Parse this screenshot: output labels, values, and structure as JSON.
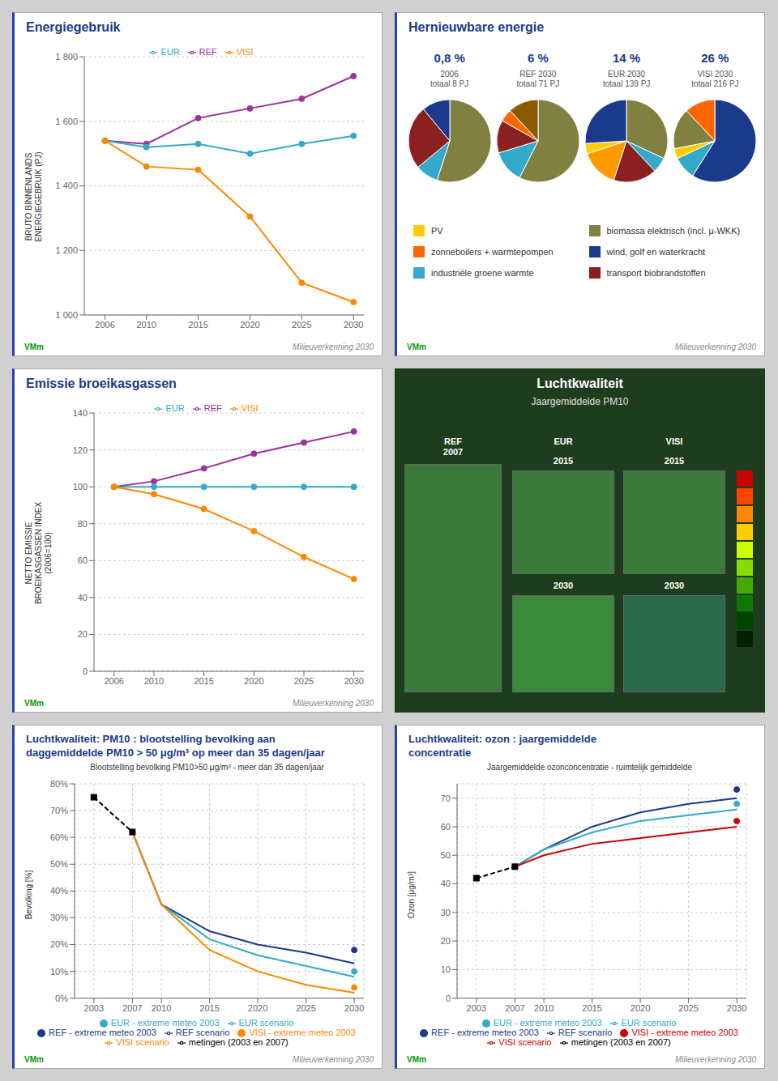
{
  "chart_data": [
    {
      "type": "line",
      "title": "Energiegebruik",
      "ylabel": "BRUTO BINNENLANDS\nENERGIEGEBRUIK (PJ)",
      "x": [
        2006,
        2010,
        2015,
        2020,
        2025,
        2030
      ],
      "xlim": [
        2004,
        2031
      ],
      "xticks": [
        2006,
        2010,
        2015,
        2020,
        2025,
        2030
      ],
      "ylim": [
        1000,
        1800
      ],
      "yticks": [
        {
          "value": 1000,
          "label": "1 000"
        },
        {
          "value": 1200,
          "label": "1 200"
        },
        {
          "value": 1400,
          "label": "1 400"
        },
        {
          "value": 1600,
          "label": "1 600"
        },
        {
          "value": 1800,
          "label": "1 800"
        }
      ],
      "grid": "y",
      "legend": "top",
      "series": [
        {
          "name": "REF",
          "color": "#993399",
          "marker": "circle",
          "values": [
            1540,
            1530,
            1610,
            1640,
            1670,
            1740
          ]
        },
        {
          "name": "EUR",
          "color": "#33aacc",
          "marker": "circle",
          "values": [
            1540,
            1520,
            1530,
            1500,
            1530,
            1555
          ]
        },
        {
          "name": "VISI",
          "color": "#ff8800",
          "marker": "circle",
          "values": [
            1540,
            1460,
            1450,
            1305,
            1100,
            1040
          ]
        }
      ],
      "annotations": [
        "VMm",
        "Milieuverkenning 2030"
      ]
    },
    {
      "type": "pie",
      "title": "Hernieuwbare energie",
      "series": [
        {
          "name": "0,8 %",
          "subtitle": "2006\ntotaal 8 PJ",
          "values": [
            55,
            9,
            25,
            11
          ],
          "colors": [
            "#808040",
            "#33aacc",
            "#8b2020",
            "#1a3a8c"
          ]
        },
        {
          "name": "6 %",
          "subtitle": "REF 2030\ntotaal 71 PJ",
          "values": [
            58,
            13,
            13,
            5,
            12
          ],
          "colors": [
            "#808040",
            "#33aacc",
            "#8b2020",
            "#ff6600",
            "#8b5a00"
          ]
        },
        {
          "name": "14 %",
          "subtitle": "EUR 2030\ntotaal 139 PJ",
          "values": [
            32,
            6,
            17,
            15,
            4,
            26
          ],
          "colors": [
            "#808040",
            "#33aacc",
            "#8b2020",
            "#ff9900",
            "#ffcc00",
            "#1a3a8c"
          ]
        },
        {
          "name": "26 %",
          "subtitle": "VISI 2030\ntotaal 216 PJ",
          "values": [
            59,
            9,
            4,
            16,
            12
          ],
          "colors": [
            "#1a3a8c",
            "#33aacc",
            "#ffcc00",
            "#808040",
            "#ff6600"
          ]
        }
      ],
      "legend": "bottom",
      "legend_items": [
        {
          "name": "PV",
          "color": "#ffcc00"
        },
        {
          "name": "biomassa elektrisch (incl. μ-WKK)",
          "color": "#808040"
        },
        {
          "name": "zonneboilers + warmtepompen",
          "color": "#ff6600"
        },
        {
          "name": "wind, golf en waterkracht",
          "color": "#1a3a8c"
        },
        {
          "name": "industriële groene warmte",
          "color": "#33aacc"
        },
        {
          "name": "transport biobrandstoffen",
          "color": "#8b2020"
        }
      ],
      "annotations": [
        "VMm",
        "Milieuverkenning 2030"
      ]
    },
    {
      "type": "line",
      "title": "Emissie broeikasgassen",
      "ylabel": "NETTO EMISSIE\nBROEIKASGASSEN INDEX\n(2006=100)",
      "x": [
        2006,
        2010,
        2015,
        2020,
        2025,
        2030
      ],
      "xlim": [
        2004,
        2031
      ],
      "xticks": [
        2006,
        2010,
        2015,
        2020,
        2025,
        2030
      ],
      "ylim": [
        0,
        140
      ],
      "yticks": [
        0,
        20,
        40,
        60,
        80,
        100,
        120,
        140
      ],
      "grid": "y",
      "legend": "top",
      "series": [
        {
          "name": "REF",
          "color": "#993399",
          "marker": "circle",
          "values": [
            100,
            103,
            110,
            118,
            124,
            130
          ]
        },
        {
          "name": "EUR",
          "color": "#33aacc",
          "marker": "circle",
          "values": [
            100,
            100,
            100,
            100,
            100,
            100
          ]
        },
        {
          "name": "VISI",
          "color": "#ff8800",
          "marker": "circle",
          "values": [
            100,
            96,
            88,
            76,
            62,
            50
          ]
        }
      ],
      "annotations": [
        "VMm",
        "Milieuverkenning 2030"
      ]
    },
    {
      "type": "map",
      "title": "Luchtkwaliteit",
      "subtitle": "Jaargemiddelde PM10",
      "annotations": [
        "REF\n2007",
        "EUR",
        "VISI",
        "2015",
        "2015",
        "2030",
        "2030"
      ]
    },
    {
      "type": "line",
      "title": "Luchtkwaliteit: PM10 : blootstelling bevolking aan\ndaggemiddelde PM10 > 50 μg/m³ op meer dan 35 dagen/jaar",
      "subtitle": "Blootstelling bevolking PM10>50 μg/m³ - meer dan 35 dagen/jaar",
      "ylabel": "Bevolking [%]",
      "xlim": [
        2001,
        2031
      ],
      "xticks": [
        2003,
        2007,
        2010,
        2015,
        2020,
        2025,
        2030
      ],
      "ylim": [
        0,
        80
      ],
      "yticks": [
        {
          "value": 0,
          "label": "0%"
        },
        {
          "value": 10,
          "label": "10%"
        },
        {
          "value": 20,
          "label": "20%"
        },
        {
          "value": 30,
          "label": "30%"
        },
        {
          "value": 40,
          "label": "40%"
        },
        {
          "value": 50,
          "label": "50%"
        },
        {
          "value": 60,
          "label": "60%"
        },
        {
          "value": 70,
          "label": "70%"
        },
        {
          "value": 80,
          "label": "80%"
        }
      ],
      "grid": true,
      "legend": "bottom",
      "series": [
        {
          "name": "metingen (2003 en 2007)",
          "x": [
            2003,
            2007
          ],
          "values": [
            75,
            62
          ],
          "color": "#000000",
          "line_style": "dashed",
          "marker": "square"
        },
        {
          "name": "REF scenario",
          "x": [
            2007,
            2010,
            2015,
            2020,
            2025,
            2030
          ],
          "values": [
            62,
            35,
            25,
            20,
            17,
            13
          ],
          "color": "#1a3a8c",
          "line_style": "solid"
        },
        {
          "name": "EUR scenario",
          "x": [
            2007,
            2010,
            2015,
            2020,
            2025,
            2030
          ],
          "values": [
            62,
            35,
            22,
            16,
            12,
            8
          ],
          "color": "#33aacc",
          "line_style": "solid"
        },
        {
          "name": "VISI scenario",
          "x": [
            2007,
            2010,
            2015,
            2020,
            2025,
            2030
          ],
          "values": [
            62,
            35,
            18,
            10,
            5,
            2
          ],
          "color": "#ff8800",
          "line_style": "solid"
        },
        {
          "name": "REF - extreme meteo 2003",
          "type": "scatter",
          "x": [
            2030
          ],
          "values": [
            18
          ],
          "color": "#1a3a8c",
          "marker": "circle"
        },
        {
          "name": "EUR - extreme meteo 2003",
          "type": "scatter",
          "x": [
            2030
          ],
          "values": [
            10
          ],
          "color": "#33aacc",
          "marker": "circle"
        },
        {
          "name": "VISI - extreme meteo 2003",
          "type": "scatter",
          "x": [
            2030
          ],
          "values": [
            4
          ],
          "color": "#ff8800",
          "marker": "circle"
        }
      ],
      "annotations": [
        "VMm",
        "Milieuverkenning 2030"
      ]
    },
    {
      "type": "line",
      "title": "Luchtkwaliteit: ozon : jaargemiddelde\nconcentratie",
      "subtitle": "Jaargemiddelde ozonconcentratie - ruimtelijk gemiddelde",
      "ylabel": "Ozon [μg/m³]",
      "xlim": [
        2001,
        2031
      ],
      "xticks": [
        2003,
        2007,
        2010,
        2015,
        2020,
        2025,
        2030
      ],
      "ylim": [
        0,
        75
      ],
      "yticks": [
        0,
        10,
        20,
        30,
        40,
        50,
        60,
        70
      ],
      "grid": true,
      "legend": "bottom",
      "series": [
        {
          "name": "metingen (2003 en 2007)",
          "x": [
            2003,
            2007
          ],
          "values": [
            42,
            46
          ],
          "color": "#000000",
          "line_style": "dashed",
          "marker": "square"
        },
        {
          "name": "REF scenario",
          "x": [
            2007,
            2010,
            2015,
            2020,
            2025,
            2030
          ],
          "values": [
            46,
            52,
            60,
            65,
            68,
            70
          ],
          "color": "#1a3a8c",
          "line_style": "solid"
        },
        {
          "name": "EUR scenario",
          "x": [
            2007,
            2010,
            2015,
            2020,
            2025,
            2030
          ],
          "values": [
            46,
            52,
            58,
            62,
            64,
            66
          ],
          "color": "#33aacc",
          "line_style": "solid"
        },
        {
          "name": "VISI scenario",
          "x": [
            2007,
            2010,
            2015,
            2020,
            2025,
            2030
          ],
          "values": [
            46,
            50,
            54,
            56,
            58,
            60
          ],
          "color": "#cc0000",
          "line_style": "solid"
        },
        {
          "name": "REF - extreme meteo 2003",
          "type": "scatter",
          "x": [
            2030
          ],
          "values": [
            73
          ],
          "color": "#1a3a8c",
          "marker": "circle"
        },
        {
          "name": "EUR - extreme meteo 2003",
          "type": "scatter",
          "x": [
            2030
          ],
          "values": [
            68
          ],
          "color": "#33aacc",
          "marker": "circle"
        },
        {
          "name": "VISI - extreme meteo 2003",
          "type": "scatter",
          "x": [
            2030
          ],
          "values": [
            62
          ],
          "color": "#cc0000",
          "marker": "circle"
        }
      ],
      "annotations": [
        "VMm",
        "Milieuverkenning 2030"
      ]
    }
  ]
}
